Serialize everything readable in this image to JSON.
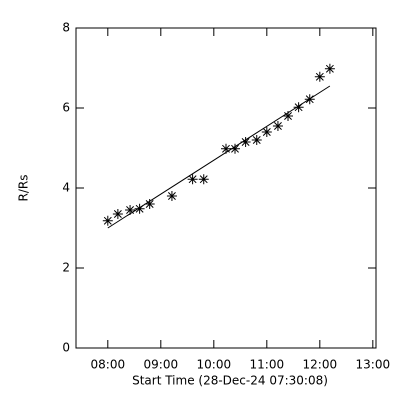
{
  "chart_data": {
    "type": "scatter",
    "xlabel": "Start Time (28-Dec-24 07:30:08)",
    "ylabel": "R/Rs",
    "xlim": [
      7.4,
      13.06
    ],
    "ylim": [
      0,
      8
    ],
    "xticks": [
      {
        "value": 8,
        "label": "08:00"
      },
      {
        "value": 9,
        "label": "09:00"
      },
      {
        "value": 10,
        "label": "10:00"
      },
      {
        "value": 11,
        "label": "11:00"
      },
      {
        "value": 12,
        "label": "12:00"
      },
      {
        "value": 13,
        "label": "13:00"
      }
    ],
    "yticks": [
      0,
      2,
      4,
      6,
      8
    ],
    "series": [
      {
        "x": [
          8.0,
          8.19,
          8.42,
          8.6,
          8.79,
          9.21,
          9.6,
          9.81,
          10.23,
          10.4,
          10.6,
          10.81,
          11.0,
          11.21,
          11.4,
          11.6,
          11.81,
          12.0,
          12.19
        ],
        "values": [
          3.18,
          3.35,
          3.45,
          3.48,
          3.6,
          3.8,
          4.22,
          4.22,
          4.98,
          4.98,
          5.15,
          5.2,
          5.4,
          5.55,
          5.8,
          6.02,
          6.22,
          6.78,
          6.98
        ],
        "color": "#000000",
        "marker": "asterisk"
      },
      {
        "x": [
          8.0,
          12.19
        ],
        "values": [
          3.0,
          6.55
        ],
        "color": "#000000",
        "marker": "line"
      }
    ]
  }
}
